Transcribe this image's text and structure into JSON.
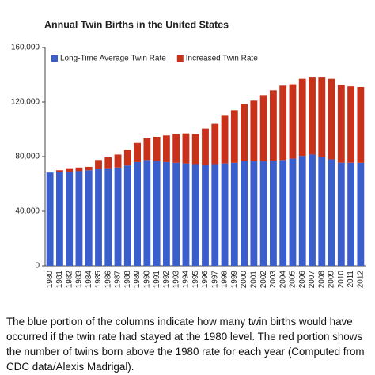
{
  "chart_data": {
    "type": "stacked_bar",
    "title": "Annual Twin Births in the United States",
    "caption": "The blue portion of the columns indicate how many twin births would have occurred if the twin rate had stayed at the 1980 level. The red portion shows the number of twins born above the 1980 rate for each year (Computed from CDC data/Alexis Madrigal).",
    "categories": [
      "1980",
      "1981",
      "1982",
      "1983",
      "1984",
      "1985",
      "1986",
      "1987",
      "1988",
      "1989",
      "1990",
      "1991",
      "1992",
      "1993",
      "1994",
      "1995",
      "1996",
      "1997",
      "1998",
      "1999",
      "2000",
      "2001",
      "2002",
      "2003",
      "2004",
      "2005",
      "2006",
      "2007",
      "2008",
      "2009",
      "2010",
      "2011",
      "2012"
    ],
    "series": [
      {
        "name": "Long-Time Average Twin Rate",
        "color": "#3a5fcd",
        "values": [
          68300,
          68500,
          69000,
          69300,
          70000,
          71000,
          71500,
          72000,
          73500,
          76000,
          77500,
          77000,
          76000,
          75500,
          75000,
          74500,
          74000,
          74500,
          75000,
          75500,
          77000,
          76500,
          76500,
          77000,
          77500,
          78500,
          80500,
          81500,
          80000,
          78000,
          75500,
          75500,
          75500
        ]
      },
      {
        "name": "Increased Twin Rate",
        "color": "#c8311a",
        "values": [
          0,
          1500,
          2500,
          2700,
          2500,
          6500,
          8000,
          9500,
          11500,
          14000,
          16000,
          17500,
          19500,
          21000,
          22000,
          22000,
          26500,
          29500,
          35500,
          38500,
          41500,
          44500,
          48500,
          51500,
          54500,
          54500,
          56500,
          57000,
          58500,
          59000,
          57000,
          56000,
          55500
        ]
      }
    ],
    "ylim": [
      0,
      160000
    ],
    "yticks": [
      0,
      {
        "value": 40000,
        "label": "40,000"
      },
      {
        "value": 80000,
        "label": "80,000"
      },
      {
        "value": 120000,
        "label": "120,000"
      },
      {
        "value": 160000,
        "label": "160,000"
      }
    ],
    "grid": false,
    "legend": "top-left"
  }
}
